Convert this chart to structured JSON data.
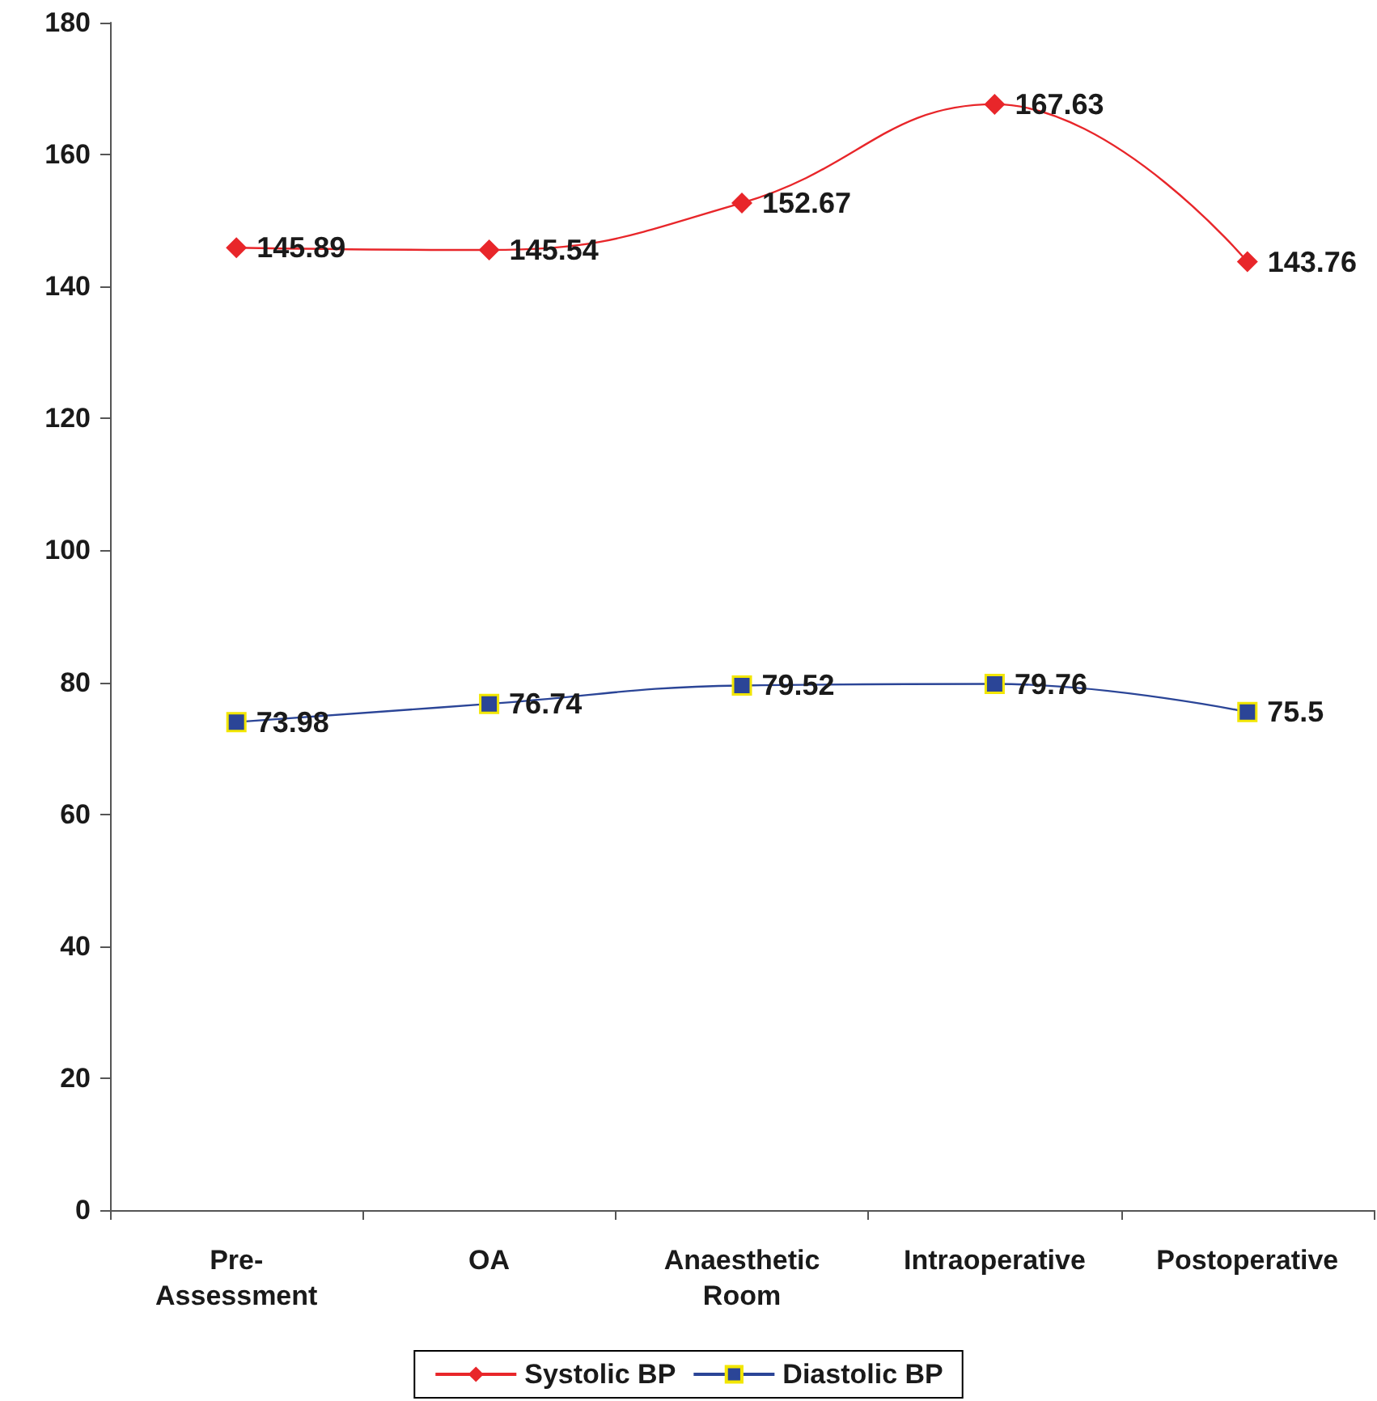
{
  "chart_data": {
    "type": "line",
    "categories": [
      "Pre-Assessment",
      "OA",
      "Anaesthetic Room",
      "Intraoperative",
      "Postoperative"
    ],
    "series": [
      {
        "name": "Systolic BP",
        "color": "#e8262a",
        "marker": "diamond",
        "values": [
          145.89,
          145.54,
          152.67,
          167.63,
          143.76
        ]
      },
      {
        "name": "Diastolic BP",
        "color": "#2b4597",
        "marker": "square",
        "values": [
          73.98,
          76.74,
          79.52,
          79.76,
          75.5
        ]
      }
    ],
    "ylim": [
      0,
      180
    ],
    "yticks": [
      0,
      20,
      40,
      60,
      80,
      100,
      120,
      140,
      160,
      180
    ],
    "grid": false,
    "legend": "bottom",
    "data_labels": true
  }
}
